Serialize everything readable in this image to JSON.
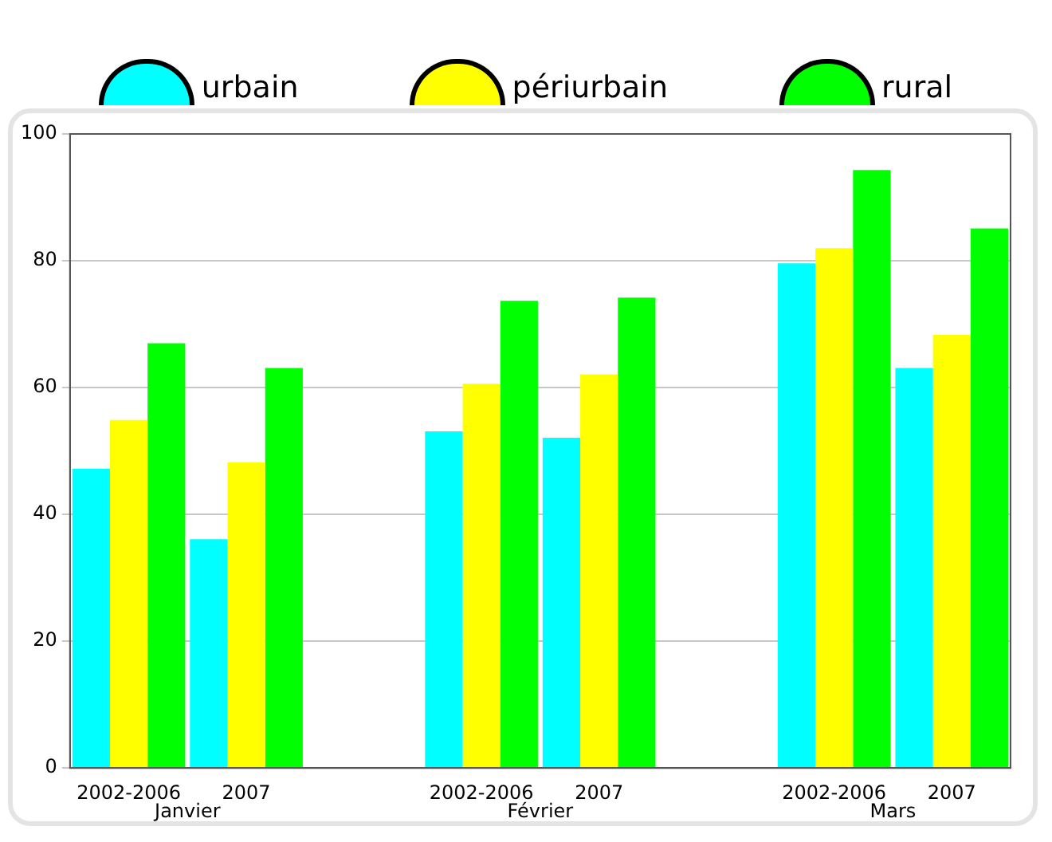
{
  "chart_data": {
    "type": "bar",
    "categories": [
      "2002-2006",
      "2007",
      null,
      "2002-2006",
      "2007",
      null,
      "2002-2006",
      "2007"
    ],
    "annotations": [
      "Janvier",
      "Février",
      "Mars"
    ],
    "series": [
      {
        "name": "urbain",
        "color": "#00ffff",
        "values": [
          47.2,
          36.1,
          null,
          53.1,
          52.1,
          null,
          79.6,
          63.1
        ]
      },
      {
        "name": "périurbain",
        "color": "#ffff00",
        "values": [
          54.9,
          48.2,
          null,
          60.6,
          62.1,
          null,
          82.0,
          68.3
        ]
      },
      {
        "name": "rural",
        "color": "#00ff00",
        "values": [
          67.0,
          63.1,
          null,
          73.7,
          74.2,
          null,
          94.3,
          85.1
        ]
      }
    ],
    "ylim": [
      0,
      100
    ],
    "yticks": [
      0,
      20,
      40,
      60,
      80,
      100
    ],
    "grid": "y",
    "legend": "top"
  }
}
